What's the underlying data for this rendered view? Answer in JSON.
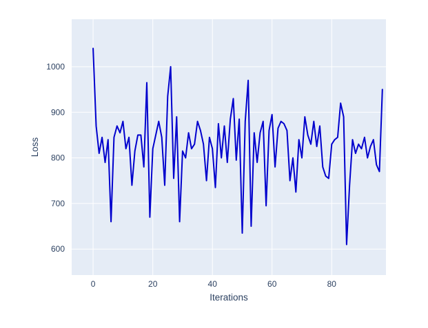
{
  "chart_data": {
    "type": "line",
    "title": "",
    "xlabel": "Iterations",
    "ylabel": "Loss",
    "x_ticks": [
      0,
      20,
      40,
      60,
      80
    ],
    "y_ticks": [
      600,
      700,
      800,
      900,
      1000
    ],
    "xlim": [
      -7.2,
      98.2
    ],
    "ylim": [
      543,
      1104
    ],
    "grid": true,
    "legend": "none",
    "plot_bg": "#e5ecf6",
    "grid_color": "#ffffff",
    "line_color": "#0000cd",
    "font_color": "#2a3f5f",
    "x_is_index": true,
    "series": [
      {
        "name": "loss",
        "y": [
          1040,
          870,
          810,
          845,
          790,
          840,
          660,
          845,
          870,
          855,
          880,
          820,
          845,
          740,
          815,
          850,
          850,
          780,
          965,
          670,
          820,
          850,
          880,
          845,
          740,
          935,
          1000,
          755,
          890,
          660,
          815,
          800,
          855,
          820,
          830,
          880,
          860,
          830,
          750,
          845,
          820,
          735,
          875,
          800,
          870,
          790,
          885,
          930,
          795,
          885,
          635,
          880,
          970,
          650,
          855,
          790,
          855,
          880,
          695,
          860,
          895,
          780,
          865,
          880,
          875,
          860,
          750,
          800,
          725,
          840,
          800,
          890,
          850,
          830,
          880,
          825,
          870,
          780,
          760,
          755,
          830,
          840,
          845,
          920,
          890,
          610,
          740,
          840,
          810,
          830,
          820,
          845,
          800,
          825,
          840,
          785,
          770,
          950
        ]
      }
    ]
  }
}
